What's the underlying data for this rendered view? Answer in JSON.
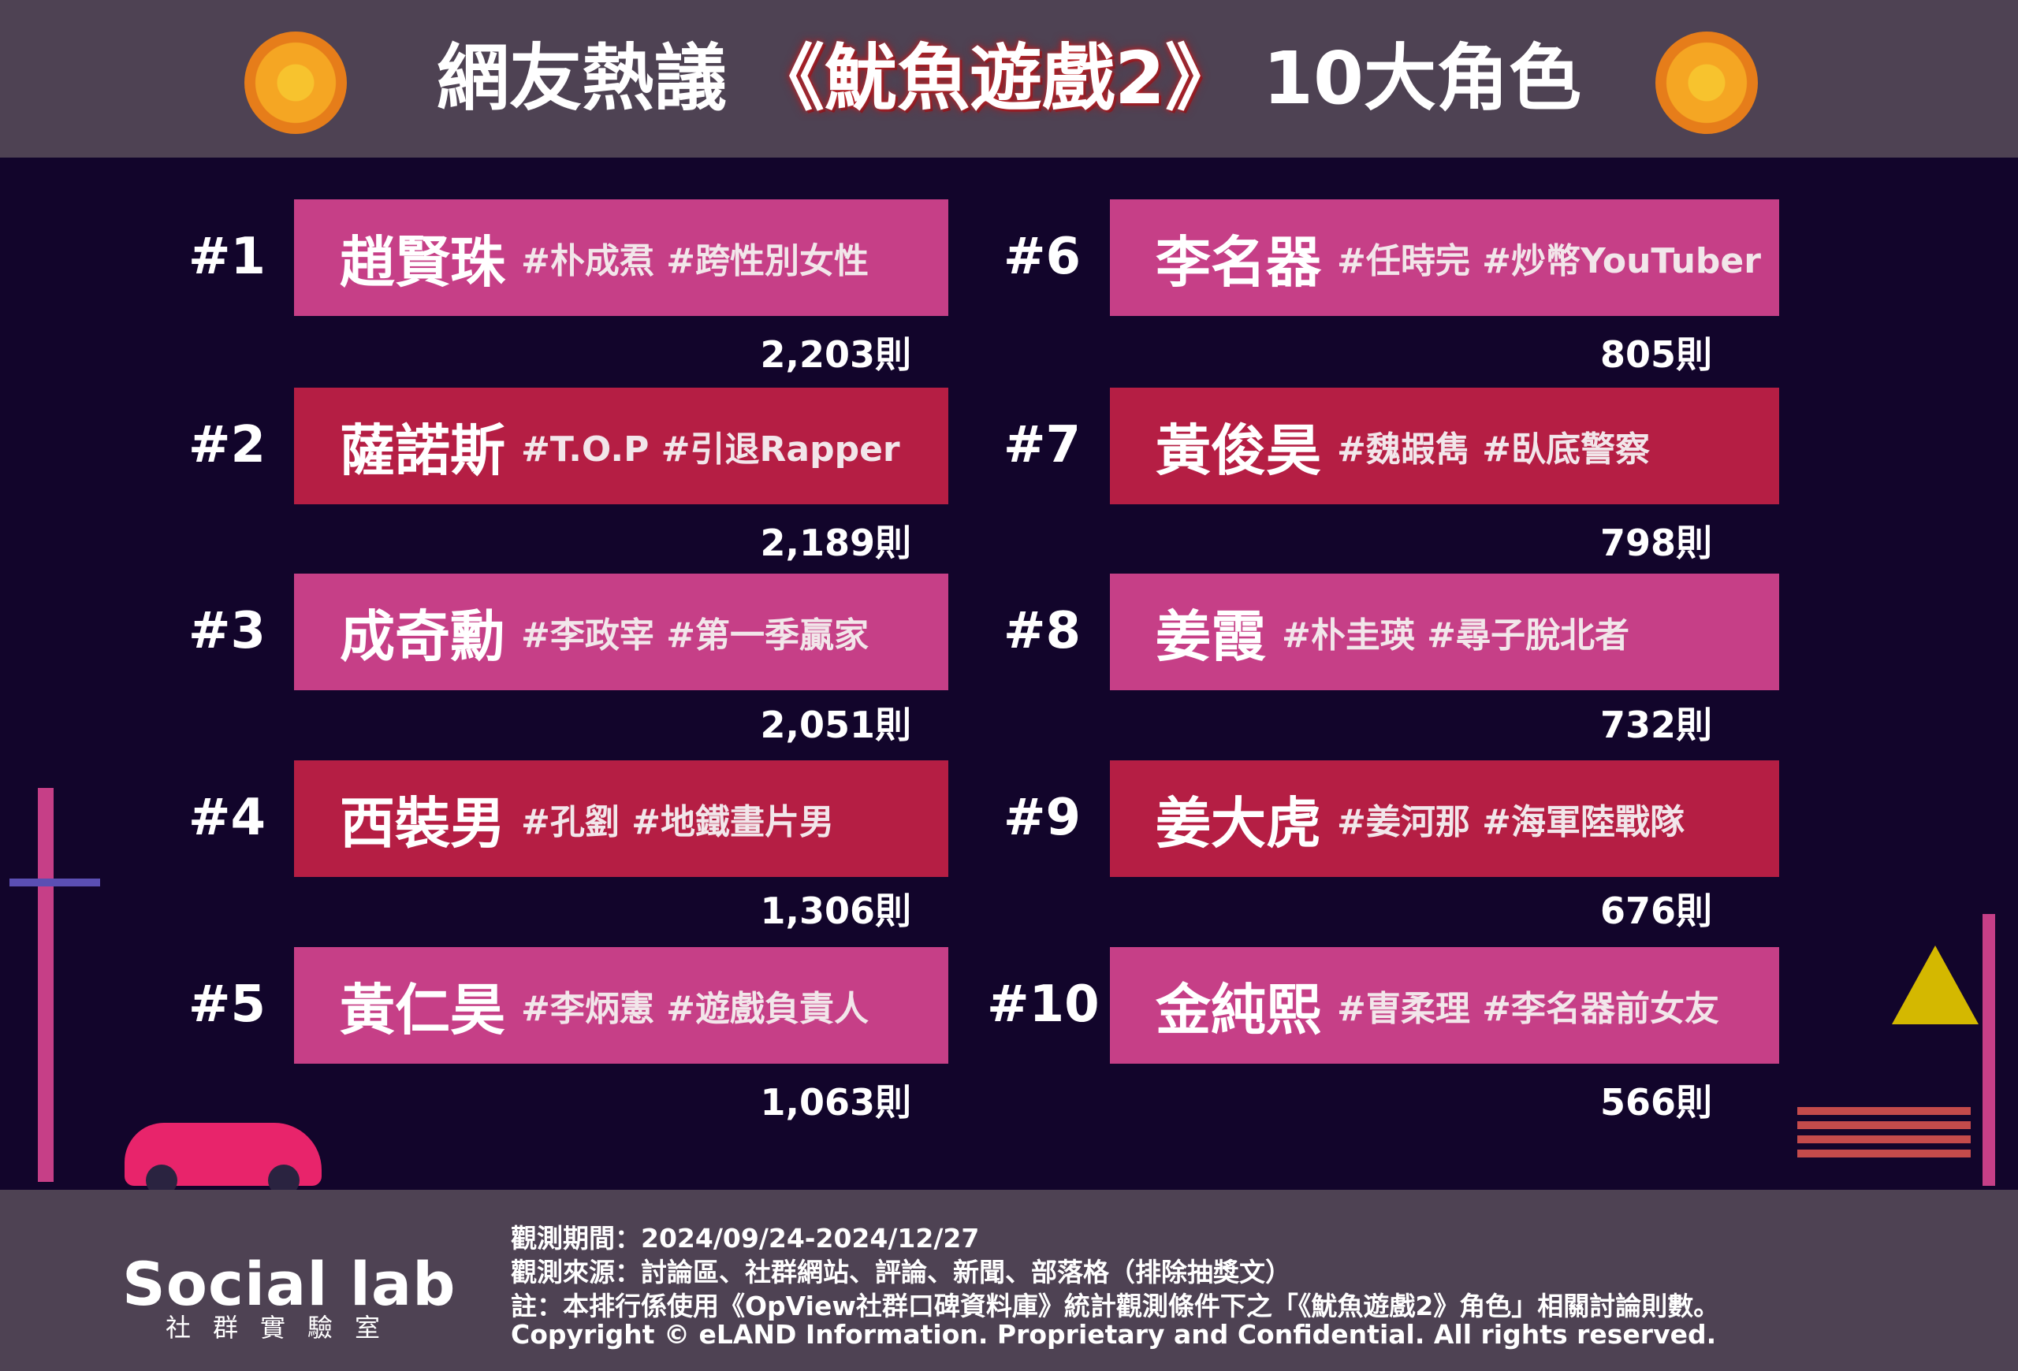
{
  "header": {
    "title_pre": "網友熱議",
    "title_hl": "《魷魚遊戲2》",
    "title_post": "10大角色"
  },
  "colors": {
    "pink": "#c63f87",
    "crimson": "#b51e44",
    "background": "#12052b",
    "band": "#4e4253"
  },
  "ranking": [
    {
      "rank": "#1",
      "name": "趙賢珠",
      "tags": "#朴成焄  #跨性別女性",
      "count": "2,203則",
      "color": "pink"
    },
    {
      "rank": "#2",
      "name": "薩諾斯",
      "tags": "#T.O.P #引退Rapper",
      "count": "2,189則",
      "color": "red"
    },
    {
      "rank": "#3",
      "name": "成奇勳",
      "tags": "#李政宰 #第一季贏家",
      "count": "2,051則",
      "color": "pink"
    },
    {
      "rank": "#4",
      "name": "西裝男",
      "tags": "#孔劉 #地鐵畫片男",
      "count": "1,306則",
      "color": "red"
    },
    {
      "rank": "#5",
      "name": "黃仁昊",
      "tags": "#李炳憲 #遊戲負責人",
      "count": "1,063則",
      "color": "pink"
    },
    {
      "rank": "#6",
      "name": "李名器",
      "tags": "#任時完 #炒幣YouTuber",
      "count": "805則",
      "color": "pink"
    },
    {
      "rank": "#7",
      "name": "黃俊昊",
      "tags": "#魏嘏雋 #臥底警察",
      "count": "798則",
      "color": "red"
    },
    {
      "rank": "#8",
      "name": "姜霞",
      "tags": "#朴圭瑛 #尋子脫北者",
      "count": "732則",
      "color": "pink"
    },
    {
      "rank": "#9",
      "name": "姜大虎",
      "tags": "#姜河那 #海軍陸戰隊",
      "count": "676則",
      "color": "red"
    },
    {
      "rank": "#10",
      "name": "金純熙",
      "tags": "#曺柔理 #李名器前女友",
      "count": "566則",
      "color": "pink"
    }
  ],
  "footer": {
    "logo": "Social lab",
    "logo_sub": "社群實驗室",
    "lines": [
      "觀測期間：2024/09/24-2024/12/27",
      "觀測來源：討論區、社群網站、評論、新聞、部落格（排除抽獎文）",
      "註：本排行係使用《OpView社群口碑資料庫》統計觀測條件下之「《魷魚遊戲2》角色」相關討論則數。",
      "Copyright © eLAND Information. Proprietary and Confidential. All rights reserved."
    ]
  }
}
